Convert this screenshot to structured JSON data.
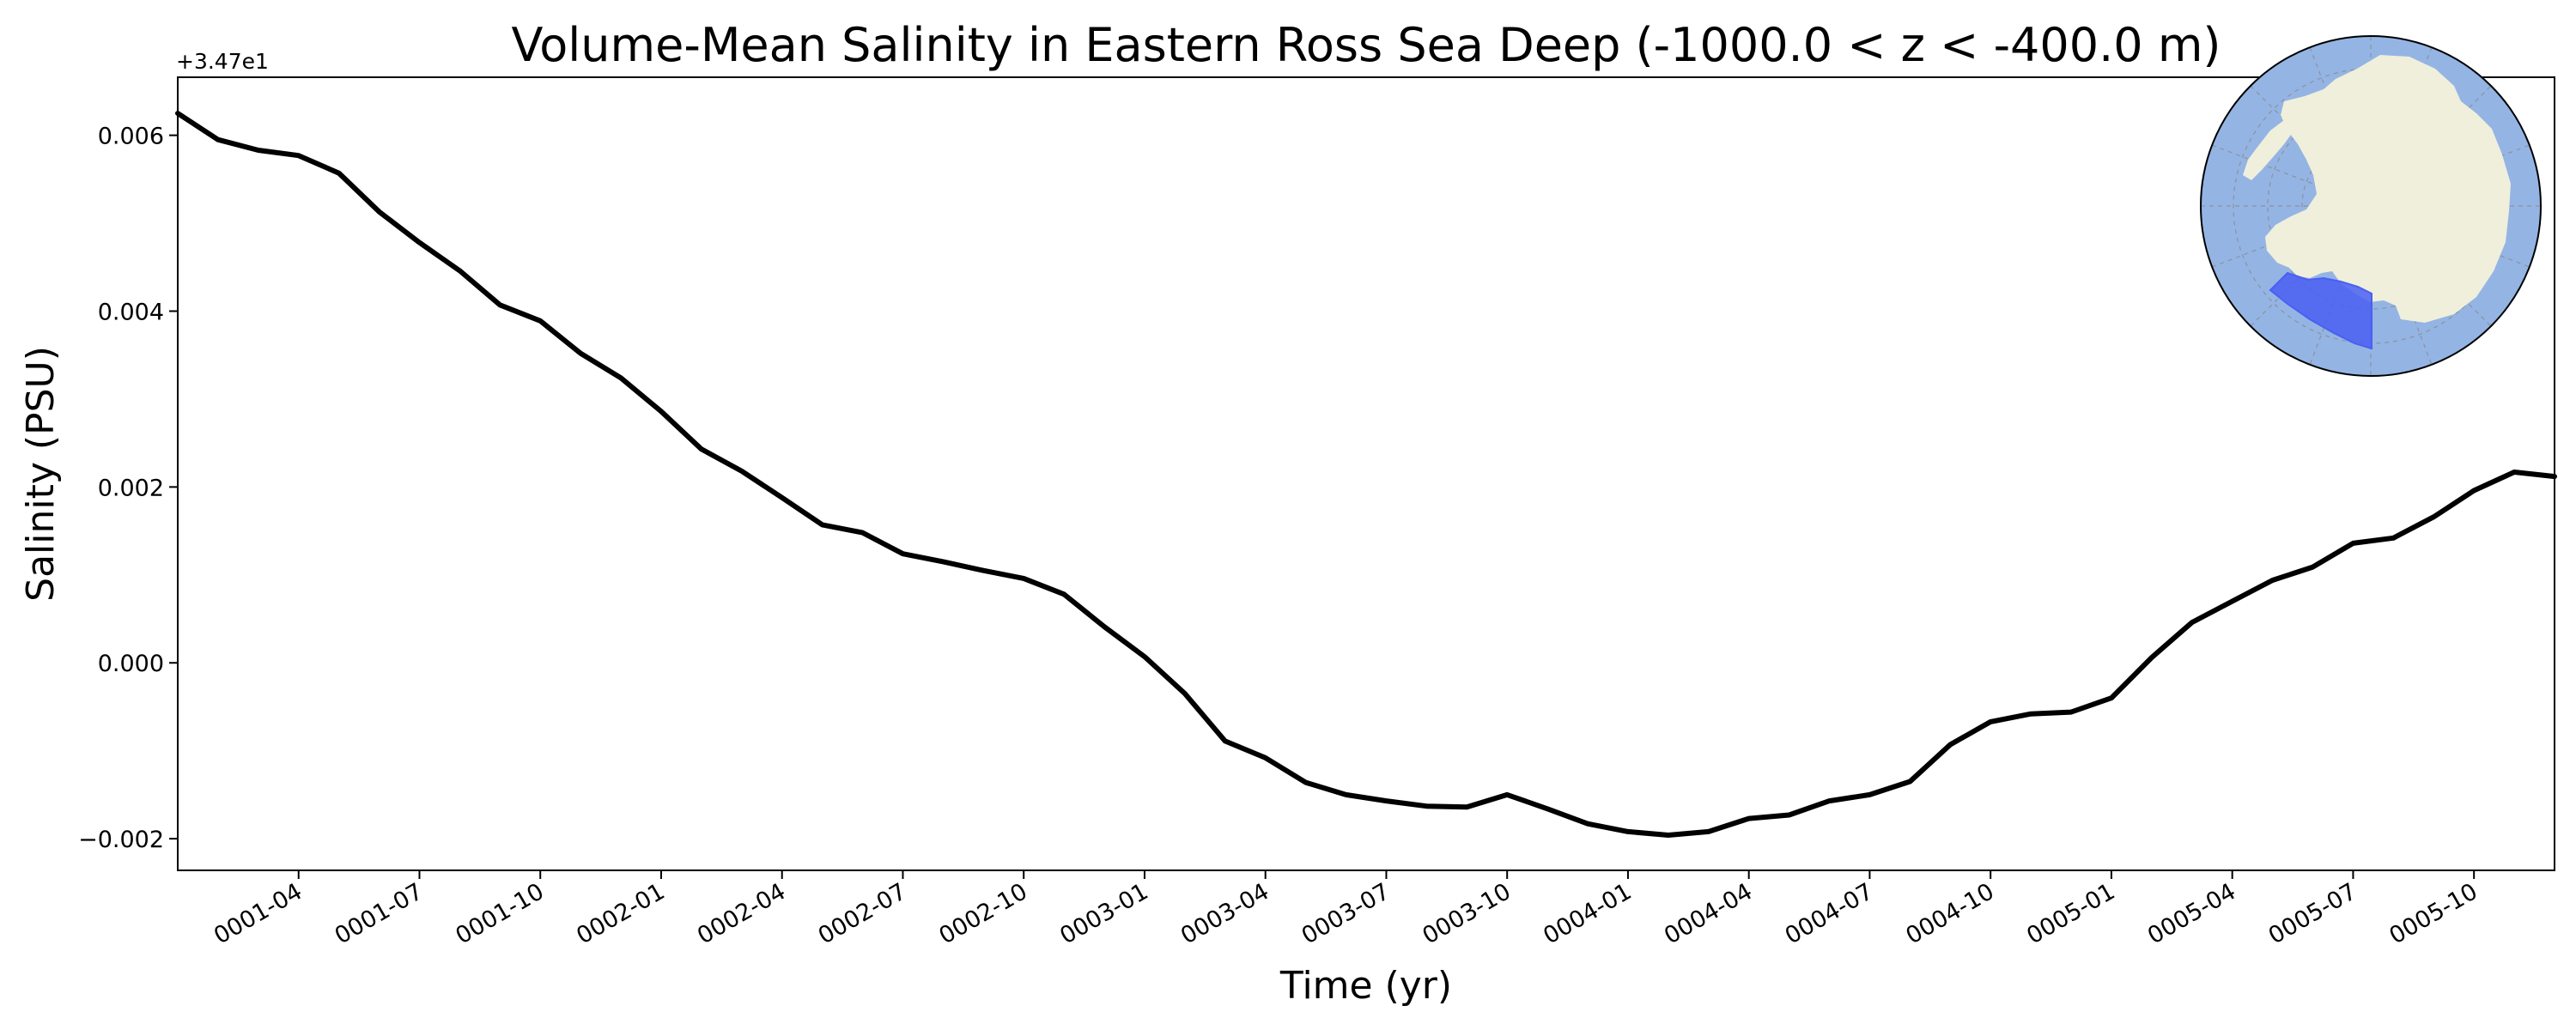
{
  "chart_data": {
    "type": "line",
    "title": "Volume-Mean Salinity in Eastern Ross Sea Deep (-1000.0 < z < -400.0 m)",
    "xlabel": "Time (yr)",
    "ylabel": "Salinity (PSU)",
    "y_offset_label": "+3.47e1",
    "xlim": [
      "0001-01",
      "0005-12"
    ],
    "ylim": [
      -0.00236,
      0.00666
    ],
    "grid": false,
    "legend": "none",
    "line_color": "#000000",
    "x_tick_labels": [
      "0001-04",
      "0001-07",
      "0001-10",
      "0002-01",
      "0002-04",
      "0002-07",
      "0002-10",
      "0003-01",
      "0003-04",
      "0003-07",
      "0003-10",
      "0004-01",
      "0004-04",
      "0004-07",
      "0004-10",
      "0005-01",
      "0005-04",
      "0005-07",
      "0005-10"
    ],
    "y_tick_values": [
      -0.002,
      0.0,
      0.002,
      0.004,
      0.006
    ],
    "y_tick_labels": [
      "−0.002",
      "0.000",
      "0.002",
      "0.004",
      "0.006"
    ],
    "series": [
      {
        "x": [
          "0001-01",
          "0001-02",
          "0001-03",
          "0001-04",
          "0001-05",
          "0001-06",
          "0001-07",
          "0001-08",
          "0001-09",
          "0001-10",
          "0001-11",
          "0001-12",
          "0002-01",
          "0002-02",
          "0002-03",
          "0002-04",
          "0002-05",
          "0002-06",
          "0002-07",
          "0002-08",
          "0002-09",
          "0002-10",
          "0002-11",
          "0002-12",
          "0003-01",
          "0003-02",
          "0003-03",
          "0003-04",
          "0003-05",
          "0003-06",
          "0003-07",
          "0003-08",
          "0003-09",
          "0003-10",
          "0003-11",
          "0003-12",
          "0004-01",
          "0004-02",
          "0004-03",
          "0004-04",
          "0004-05",
          "0004-06",
          "0004-07",
          "0004-08",
          "0004-09",
          "0004-10",
          "0004-11",
          "0004-12",
          "0005-01",
          "0005-02",
          "0005-03",
          "0005-04",
          "0005-05",
          "0005-06",
          "0005-07",
          "0005-08",
          "0005-09",
          "0005-10",
          "0005-11",
          "0005-12"
        ],
        "values": [
          0.00625,
          0.00595,
          0.00583,
          0.00577,
          0.00557,
          0.00513,
          0.00478,
          0.00446,
          0.00407,
          0.00389,
          0.00352,
          0.00324,
          0.00286,
          0.00243,
          0.00218,
          0.00188,
          0.00157,
          0.00148,
          0.00124,
          0.00115,
          0.00105,
          0.00096,
          0.00078,
          0.00041,
          7e-05,
          -0.00035,
          -0.00089,
          -0.00108,
          -0.00136,
          -0.0015,
          -0.00157,
          -0.00163,
          -0.00164,
          -0.0015,
          -0.00166,
          -0.00183,
          -0.00192,
          -0.00196,
          -0.00192,
          -0.00177,
          -0.00173,
          -0.00157,
          -0.0015,
          -0.00135,
          -0.00093,
          -0.00067,
          -0.00058,
          -0.00056,
          -0.0004,
          6e-05,
          0.00046,
          0.0007,
          0.00094,
          0.00109,
          0.00136,
          0.00142,
          0.00166,
          0.00196,
          0.00217,
          0.00212
        ]
      }
    ]
  },
  "inset_map": {
    "ocean_color": "#94b4e4",
    "land_color": "#efefdc",
    "region_color": "#4a5ff2",
    "border_color": "#000000"
  }
}
